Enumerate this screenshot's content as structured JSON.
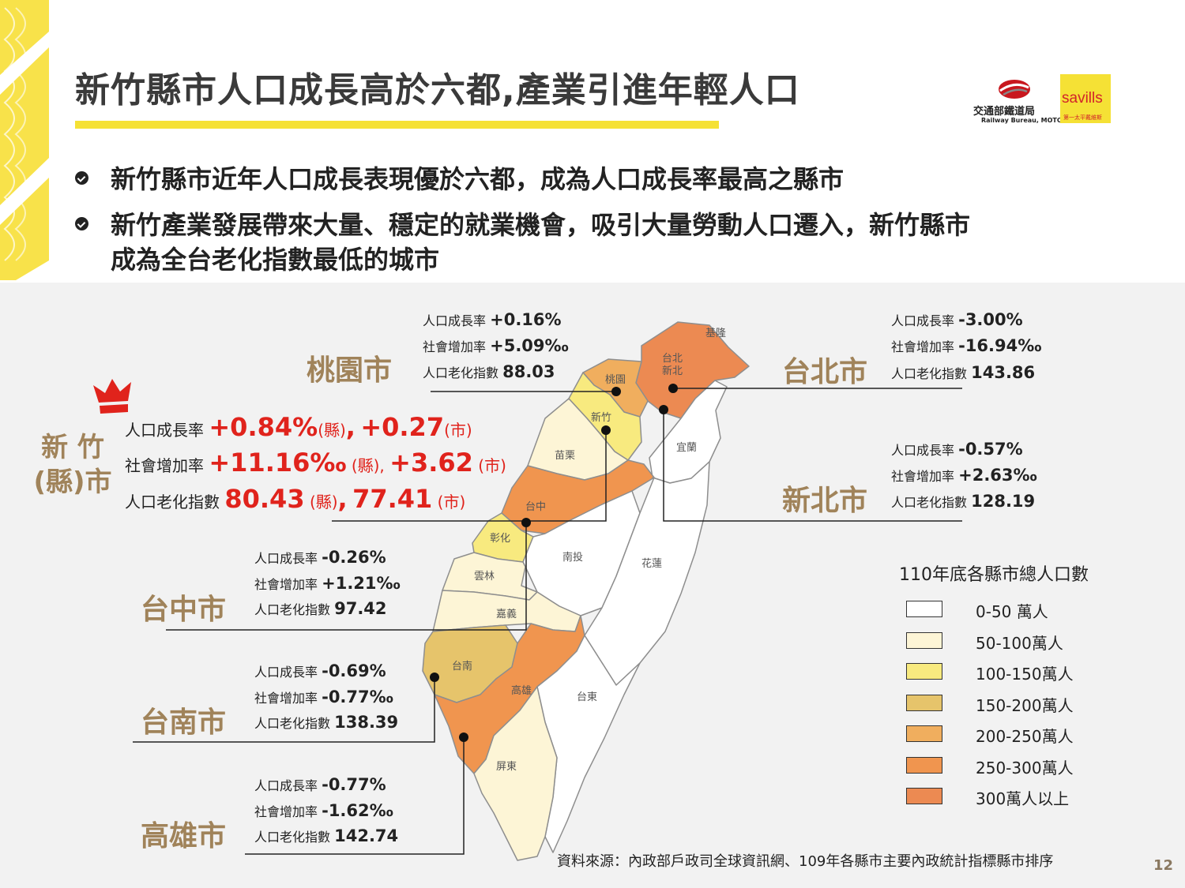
{
  "title": "新竹縣市人口成長高於六都,產業引進年輕人口",
  "logos": {
    "railway_name": "交通部鐵道局",
    "railway_sub": "Railway Bureau, MOTC",
    "savills_name": "savills",
    "savills_tag": "第一太平戴維斯"
  },
  "bullets": [
    {
      "lines": [
        "新竹縣市近年人口成長表現優於六都，成為人口成長率最高之縣市"
      ]
    },
    {
      "lines": [
        "新竹產業發展帶來大量、穩定的就業機會，吸引大量勞動人口遷入，新竹縣市",
        "成為全台老化指數最低的城市"
      ]
    }
  ],
  "stat_labels": {
    "growth": "人口成長率",
    "social": "社會增加率",
    "aging": "人口老化指數"
  },
  "cities": {
    "taoyuan": {
      "name": "桃園市",
      "growth": "+0.16%",
      "social": "+5.09‰",
      "aging": "88.03"
    },
    "taipei": {
      "name": "台北市",
      "growth": "-3.00%",
      "social": "-16.94‰",
      "aging": "143.86"
    },
    "newtaipei": {
      "name": "新北市",
      "growth": "-0.57%",
      "social": "+2.63‰",
      "aging": "128.19"
    },
    "taichung": {
      "name": "台中市",
      "growth": "-0.26%",
      "social": "+1.21‰",
      "aging": "97.42"
    },
    "tainan": {
      "name": "台南市",
      "growth": "-0.69%",
      "social": "-0.77‰",
      "aging": "138.39"
    },
    "kaohsiung": {
      "name": "高雄市",
      "growth": "-0.77%",
      "social": "-1.62‰",
      "aging": "142.74"
    }
  },
  "hsinchu": {
    "name_line1": "新 竹",
    "name_line2": "(縣)市",
    "growth_county": "+0.84%",
    "county_tag": "(縣)",
    "growth_sep": ",",
    "growth_city": "+0.27",
    "city_tag": "(市)",
    "social_county": "+11.16‰",
    "social_county_tag": "(縣),",
    "social_city": "+3.62",
    "social_city_tag": "(市)",
    "aging_county": "80.43",
    "aging_county_tag": "(縣)",
    "aging_sep": ",",
    "aging_city": "77.41",
    "aging_city_tag": "(市)"
  },
  "map_labels": {
    "keelung": "基隆",
    "taipei_newtaipei_1": "台北",
    "taipei_newtaipei_2": "新北",
    "taoyuan": "桃園",
    "hsinchu": "新竹",
    "miaoli": "苗栗",
    "yilan": "宜蘭",
    "taichung": "台中",
    "changhua": "彰化",
    "nantou": "南投",
    "hualien": "花蓮",
    "yunlin": "雲林",
    "chiayi": "嘉義",
    "tainan": "台南",
    "kaohsiung": "高雄",
    "taitung": "台東",
    "pingtung": "屏東"
  },
  "legend": {
    "title": "110年底各縣市總人口數",
    "items": [
      {
        "label": "0-50 萬人",
        "color": "#ffffff"
      },
      {
        "label": "50-100萬人",
        "color": "#fdf5d6"
      },
      {
        "label": "100-150萬人",
        "color": "#f8ea7f"
      },
      {
        "label": "150-200萬人",
        "color": "#e6c46b"
      },
      {
        "label": "200-250萬人",
        "color": "#f0ae5e"
      },
      {
        "label": "250-300萬人",
        "color": "#f0954f"
      },
      {
        "label": "300萬人以上",
        "color": "#ec8a52"
      }
    ]
  },
  "colors": {
    "accent_yellow": "#f5e135",
    "city_name": "#a0835a",
    "highlight_red": "#e0231c",
    "border": "#8e8e8e"
  },
  "source": "資料來源：內政部戶政司全球資訊網、109年各縣市主要內政統計指標縣市排序",
  "page_number": "12"
}
